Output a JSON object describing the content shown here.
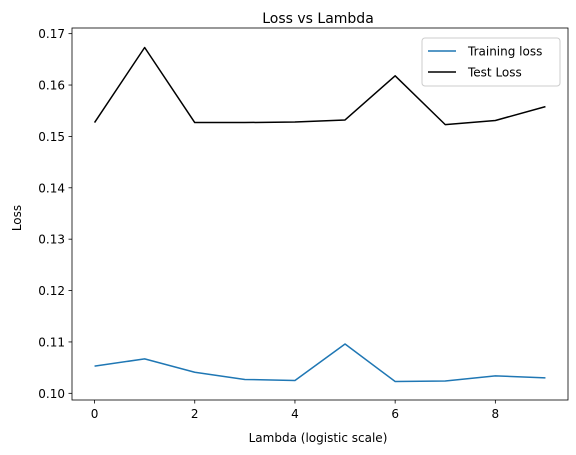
{
  "chart_data": {
    "type": "line",
    "title": "Loss vs Lambda",
    "xlabel": "Lambda (logistic scale)",
    "ylabel": "Loss",
    "x": [
      0,
      1,
      2,
      3,
      4,
      5,
      6,
      7,
      8,
      9
    ],
    "xlim": [
      -0.45,
      9.45
    ],
    "ylim": [
      0.0987,
      0.1711
    ],
    "xticks": [
      0,
      2,
      4,
      6,
      8
    ],
    "xtick_labels": [
      "0",
      "2",
      "4",
      "6",
      "8"
    ],
    "yticks": [
      0.1,
      0.11,
      0.12,
      0.13,
      0.14,
      0.15,
      0.16,
      0.17
    ],
    "ytick_labels": [
      "0.10",
      "0.11",
      "0.12",
      "0.13",
      "0.14",
      "0.15",
      "0.16",
      "0.17"
    ],
    "grid": false,
    "legend_position": "top-right",
    "series": [
      {
        "name": "Training loss",
        "color": "#1f77b4",
        "values": [
          0.1053,
          0.1067,
          0.1041,
          0.1027,
          0.1025,
          0.1096,
          0.1023,
          0.1024,
          0.1034,
          0.103
        ]
      },
      {
        "name": "Test Loss",
        "color": "#000000",
        "values": [
          0.1527,
          0.1673,
          0.1527,
          0.1527,
          0.1528,
          0.1532,
          0.1618,
          0.1523,
          0.1531,
          0.1558
        ]
      }
    ]
  }
}
